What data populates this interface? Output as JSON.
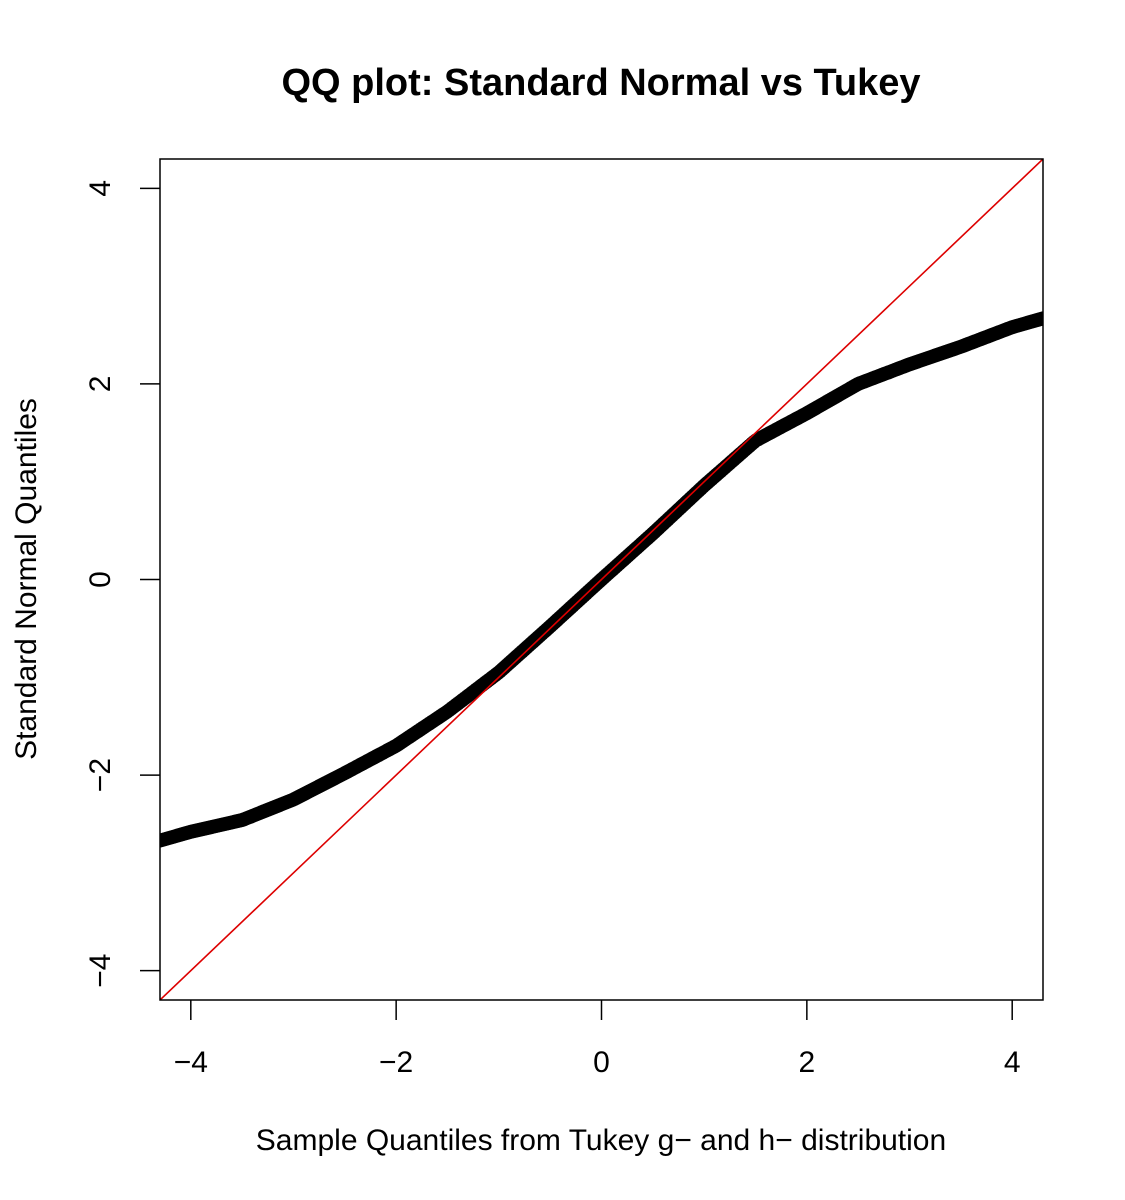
{
  "chart_data": {
    "type": "scatter",
    "title": "QQ plot: Standard Normal vs Tukey",
    "xlabel": "Sample Quantiles from Tukey g− and h− distribution",
    "ylabel": "Standard Normal Quantiles",
    "xlim": [
      -4.3,
      4.3
    ],
    "ylim": [
      -4.3,
      4.3
    ],
    "x_ticks": [
      -4,
      -2,
      0,
      2,
      4
    ],
    "y_ticks": [
      -4,
      -2,
      0,
      2,
      4
    ],
    "x_tick_labels": [
      "−4",
      "−2",
      "0",
      "2",
      "4"
    ],
    "y_tick_labels": [
      "−4",
      "−2",
      "0",
      "2",
      "4"
    ],
    "grid": false,
    "series": [
      {
        "color": "#000000",
        "x": [
          -4.3,
          -4.0,
          -3.5,
          -3.0,
          -2.5,
          -2.0,
          -1.5,
          -1.0,
          -0.5,
          0.0,
          0.5,
          1.0,
          1.5,
          2.0,
          2.5,
          3.0,
          3.5,
          4.0,
          4.3
        ],
        "y": [
          -2.67,
          -2.58,
          -2.46,
          -2.25,
          -1.98,
          -1.7,
          -1.35,
          -0.95,
          -0.48,
          0.0,
          0.47,
          0.96,
          1.42,
          1.7,
          2.0,
          2.2,
          2.38,
          2.58,
          2.67
        ]
      }
    ],
    "reference_line": {
      "type": "y=x",
      "color": "#dd0000"
    }
  }
}
